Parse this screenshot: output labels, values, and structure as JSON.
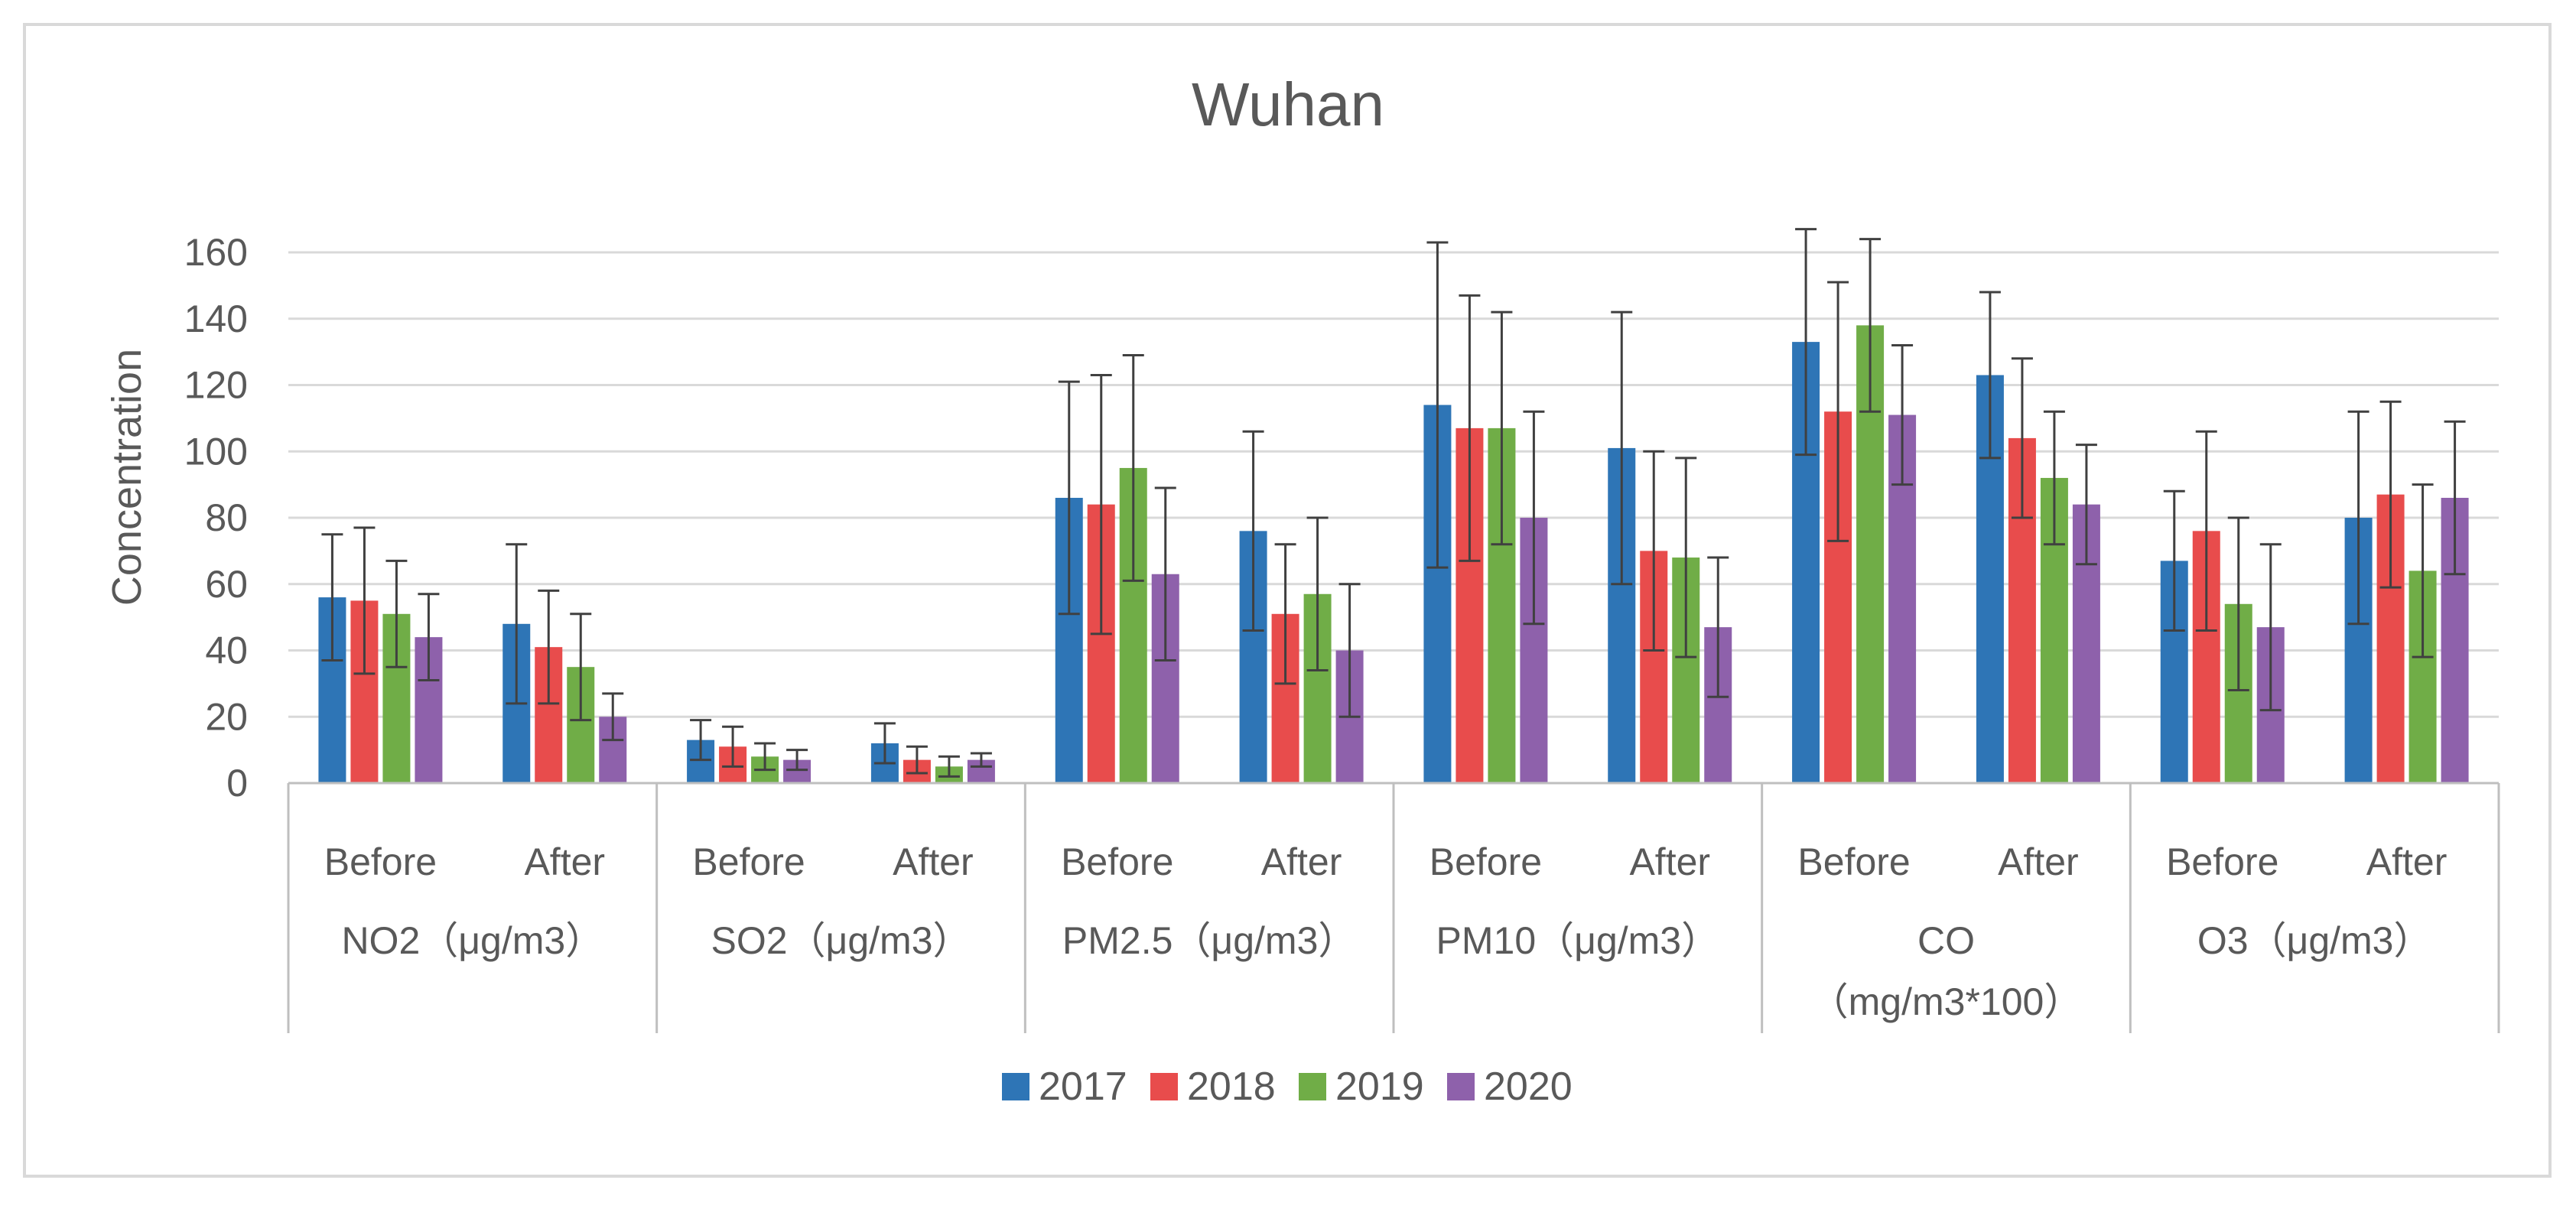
{
  "chart_data": {
    "type": "bar",
    "title": "Wuhan",
    "xlabel": "",
    "ylabel": "Concentration",
    "ylim": [
      0,
      160
    ],
    "yticks": [
      "0",
      "20",
      "40",
      "60",
      "80",
      "100",
      "120",
      "140",
      "160"
    ],
    "grid": true,
    "legend_position": "bottom",
    "groups": [
      {
        "name": "NO2（μg/m3）",
        "name_lines": [
          "NO2（μg/m3）"
        ],
        "subcategories": [
          "Before",
          "After"
        ]
      },
      {
        "name": "SO2（μg/m3）",
        "name_lines": [
          "SO2（μg/m3）"
        ],
        "subcategories": [
          "Before",
          "After"
        ]
      },
      {
        "name": "PM2.5（μg/m3）",
        "name_lines": [
          "PM2.5（μg/m3）"
        ],
        "subcategories": [
          "Before",
          "After"
        ]
      },
      {
        "name": "PM10（μg/m3）",
        "name_lines": [
          "PM10（μg/m3）"
        ],
        "subcategories": [
          "Before",
          "After"
        ]
      },
      {
        "name": "CO（mg/m3*100）",
        "name_lines": [
          "CO",
          "（mg/m3*100）"
        ],
        "subcategories": [
          "Before",
          "After"
        ]
      },
      {
        "name": "O3（μg/m3）",
        "name_lines": [
          "O3（μg/m3）"
        ],
        "subcategories": [
          "Before",
          "After"
        ]
      }
    ],
    "categories": [
      "NO2 Before",
      "NO2 After",
      "SO2 Before",
      "SO2 After",
      "PM2.5 Before",
      "PM2.5 After",
      "PM10 Before",
      "PM10 After",
      "CO Before",
      "CO After",
      "O3 Before",
      "O3 After"
    ],
    "series": [
      {
        "name": "2017",
        "color": "#2e75b6",
        "values": [
          56,
          48,
          13,
          12,
          86,
          76,
          114,
          101,
          133,
          123,
          67,
          80
        ],
        "errors": [
          19,
          24,
          6,
          6,
          35,
          30,
          49,
          41,
          34,
          25,
          21,
          32
        ]
      },
      {
        "name": "2018",
        "color": "#e84c4c",
        "values": [
          55,
          41,
          11,
          7,
          84,
          51,
          107,
          70,
          112,
          104,
          76,
          87
        ],
        "errors": [
          22,
          17,
          6,
          4,
          39,
          21,
          40,
          30,
          39,
          24,
          30,
          28
        ]
      },
      {
        "name": "2019",
        "color": "#70ad47",
        "values": [
          51,
          35,
          8,
          5,
          95,
          57,
          107,
          68,
          138,
          92,
          54,
          64
        ],
        "errors": [
          16,
          16,
          4,
          3,
          34,
          23,
          35,
          30,
          26,
          20,
          26,
          26
        ]
      },
      {
        "name": "2020",
        "color": "#8e61ab",
        "values": [
          44,
          20,
          7,
          7,
          63,
          40,
          80,
          47,
          111,
          84,
          47,
          86
        ],
        "errors": [
          13,
          7,
          3,
          2,
          26,
          20,
          32,
          21,
          21,
          18,
          25,
          23
        ]
      }
    ]
  }
}
